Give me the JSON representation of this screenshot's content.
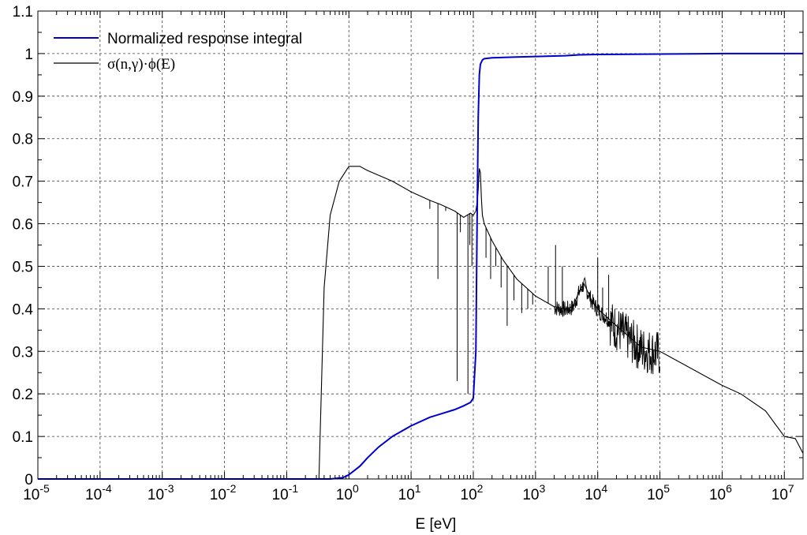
{
  "chart_data": {
    "type": "line",
    "title": "",
    "xlabel": "E [eV]",
    "ylabel": "",
    "x_scale": "log",
    "xlim": [
      1e-05,
      20000000.0
    ],
    "ylim": [
      0,
      1.1
    ],
    "grid": true,
    "legend_position": "top-left",
    "x_ticks": [
      {
        "base": "10",
        "exp": "-5",
        "value": 1e-05
      },
      {
        "base": "10",
        "exp": "-4",
        "value": 0.0001
      },
      {
        "base": "10",
        "exp": "-3",
        "value": 0.001
      },
      {
        "base": "10",
        "exp": "-2",
        "value": 0.01
      },
      {
        "base": "10",
        "exp": "-1",
        "value": 0.1
      },
      {
        "base": "10",
        "exp": "0",
        "value": 1
      },
      {
        "base": "10",
        "exp": "1",
        "value": 10
      },
      {
        "base": "10",
        "exp": "2",
        "value": 100
      },
      {
        "base": "10",
        "exp": "3",
        "value": 1000
      },
      {
        "base": "10",
        "exp": "4",
        "value": 10000
      },
      {
        "base": "10",
        "exp": "5",
        "value": 100000
      },
      {
        "base": "10",
        "exp": "6",
        "value": 1000000
      },
      {
        "base": "10",
        "exp": "7",
        "value": 10000000
      }
    ],
    "y_ticks": [
      {
        "label": "0",
        "value": 0
      },
      {
        "label": "0.1",
        "value": 0.1
      },
      {
        "label": "0.2",
        "value": 0.2
      },
      {
        "label": "0.3",
        "value": 0.3
      },
      {
        "label": "0.4",
        "value": 0.4
      },
      {
        "label": "0.5",
        "value": 0.5
      },
      {
        "label": "0.6",
        "value": 0.6
      },
      {
        "label": "0.7",
        "value": 0.7
      },
      {
        "label": "0.8",
        "value": 0.8
      },
      {
        "label": "0.9",
        "value": 0.9
      },
      {
        "label": "1",
        "value": 1.0
      },
      {
        "label": "1.1",
        "value": 1.1
      }
    ],
    "series": [
      {
        "name": "Normalized response integral",
        "color": "#0000cc",
        "x": [
          1e-05,
          0.5,
          0.8,
          1,
          1.5,
          2,
          3,
          5,
          10,
          20,
          30,
          50,
          70,
          90,
          100,
          110,
          115,
          120,
          125,
          130,
          140,
          150,
          200,
          500,
          1000,
          3000,
          5000,
          10000,
          100000,
          1000000,
          20000000
        ],
        "y": [
          0,
          0,
          0.003,
          0.01,
          0.03,
          0.05,
          0.075,
          0.1,
          0.125,
          0.145,
          0.153,
          0.163,
          0.172,
          0.18,
          0.19,
          0.3,
          0.6,
          0.85,
          0.95,
          0.975,
          0.985,
          0.988,
          0.99,
          0.992,
          0.993,
          0.995,
          0.997,
          0.998,
          0.999,
          1.0,
          1.0
        ]
      },
      {
        "name": "σ(n,γ)·ϕ(E)",
        "color": "#000000",
        "x": [
          0.3,
          0.33,
          0.4,
          0.5,
          0.7,
          1,
          1.5,
          2,
          5,
          10,
          20,
          30,
          50,
          70,
          90,
          100,
          110,
          115,
          120,
          125,
          130,
          135,
          140,
          150,
          200,
          300,
          500,
          1000,
          2000,
          3000,
          4000,
          5000,
          6000,
          8000,
          10000,
          20000,
          50000,
          100000,
          1000000,
          2000000,
          5000000,
          10000000,
          15000000,
          20000000
        ],
        "y": [
          0,
          0,
          0.45,
          0.62,
          0.7,
          0.735,
          0.735,
          0.725,
          0.7,
          0.675,
          0.655,
          0.645,
          0.63,
          0.615,
          0.625,
          0.62,
          0.63,
          0.65,
          0.68,
          0.73,
          0.72,
          0.66,
          0.62,
          0.6,
          0.56,
          0.515,
          0.47,
          0.43,
          0.405,
          0.4,
          0.405,
          0.44,
          0.46,
          0.42,
          0.4,
          0.36,
          0.31,
          0.3,
          0.22,
          0.2,
          0.16,
          0.1,
          0.095,
          0.06
        ]
      }
    ],
    "resonance_dips": [
      {
        "x": 20,
        "y": 0.635
      },
      {
        "x": 27,
        "y": 0.47
      },
      {
        "x": 36,
        "y": 0.63
      },
      {
        "x": 55,
        "y": 0.23
      },
      {
        "x": 62,
        "y": 0.58
      },
      {
        "x": 82,
        "y": 0.2
      },
      {
        "x": 88,
        "y": 0.55
      },
      {
        "x": 95,
        "y": 0.5
      },
      {
        "x": 160,
        "y": 0.52
      },
      {
        "x": 190,
        "y": 0.47
      },
      {
        "x": 230,
        "y": 0.5
      },
      {
        "x": 280,
        "y": 0.45
      },
      {
        "x": 350,
        "y": 0.36
      },
      {
        "x": 450,
        "y": 0.42
      },
      {
        "x": 600,
        "y": 0.39
      },
      {
        "x": 750,
        "y": 0.4
      },
      {
        "x": 900,
        "y": 0.41
      }
    ],
    "resonance_spikes": [
      {
        "x": 1600,
        "y": 0.5
      },
      {
        "x": 2100,
        "y": 0.55
      },
      {
        "x": 2700,
        "y": 0.5
      },
      {
        "x": 10000,
        "y": 0.52
      },
      {
        "x": 12000,
        "y": 0.45
      },
      {
        "x": 15000,
        "y": 0.48
      }
    ],
    "fine_structure_range": [
      2000,
      100000
    ]
  }
}
